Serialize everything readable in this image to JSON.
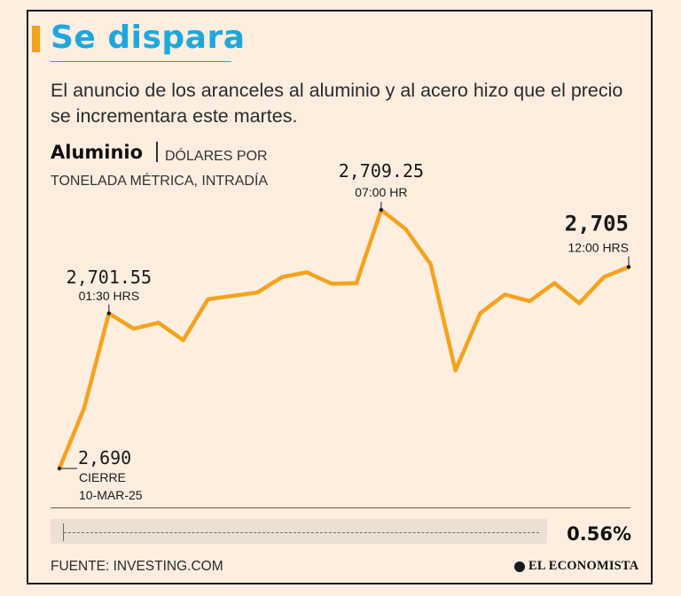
{
  "header": {
    "title": "Se dispara",
    "subtitle": "El anuncio de los aranceles al aluminio y al acero hizo que el precio se incrementara este martes."
  },
  "chart_data": {
    "type": "line",
    "title": "Aluminio",
    "unit": "DÓLARES POR TONELADA MÉTRICA, INTRADÍA",
    "ylim": [
      2688,
      2711
    ],
    "series": [
      {
        "name": "Aluminio",
        "color": "#f5a21c",
        "values": [
          2690,
          2694.5,
          2701.55,
          2700.4,
          2700.85,
          2699.55,
          2702.6,
          2702.85,
          2703.1,
          2704.25,
          2704.6,
          2703.75,
          2703.8,
          2709.25,
          2707.8,
          2705.2,
          2697.3,
          2701.55,
          2702.95,
          2702.45,
          2703.8,
          2702.3,
          2704.25,
          2705
        ]
      }
    ],
    "annotations": [
      {
        "index": 0,
        "value": "2,690",
        "sub": "CIERRE",
        "sub2": "10-MAR-25"
      },
      {
        "index": 2,
        "value": "2,701.55",
        "sub": "01:30 HRS"
      },
      {
        "index": 13,
        "value": "2,709.25",
        "sub": "07:00 HR"
      },
      {
        "index": 23,
        "value": "2,705",
        "sub": "12:00 HRS"
      }
    ]
  },
  "summary": {
    "change": "0.56%"
  },
  "footer": {
    "source": "FUENTE: INVESTING.COM",
    "brand": "EL ECONOMISTA"
  }
}
